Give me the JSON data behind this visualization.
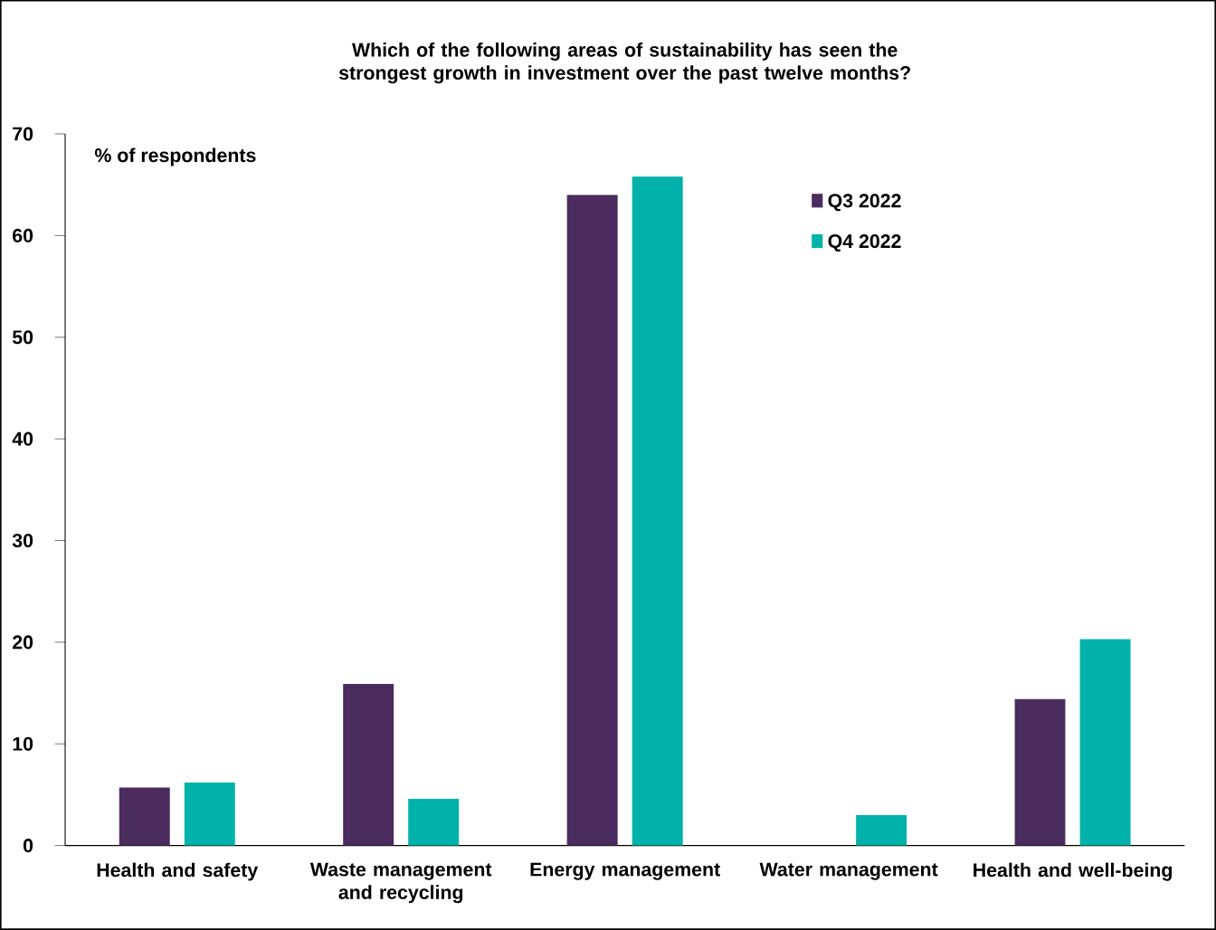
{
  "chart_data": {
    "type": "bar",
    "title": "Which of the following areas of sustainability has seen the strongest growth in investment over the past twelve months?",
    "ylabel": "% of respondents",
    "categories": [
      "Health and safety",
      "Waste management and recycling",
      "Energy management",
      "Water management",
      "Health and well-being"
    ],
    "series": [
      {
        "name": "Q3 2022",
        "color": "#4b2c5e",
        "values": [
          5.7,
          15.9,
          64.0,
          0,
          14.4
        ]
      },
      {
        "name": "Q4 2022",
        "color": "#00b2a9",
        "values": [
          6.2,
          4.6,
          65.8,
          3.0,
          20.3
        ]
      }
    ],
    "ylim": [
      0,
      70
    ],
    "yticks": [
      0,
      10,
      20,
      30,
      40,
      50,
      60,
      70
    ],
    "grid": false,
    "legend": "top right"
  }
}
